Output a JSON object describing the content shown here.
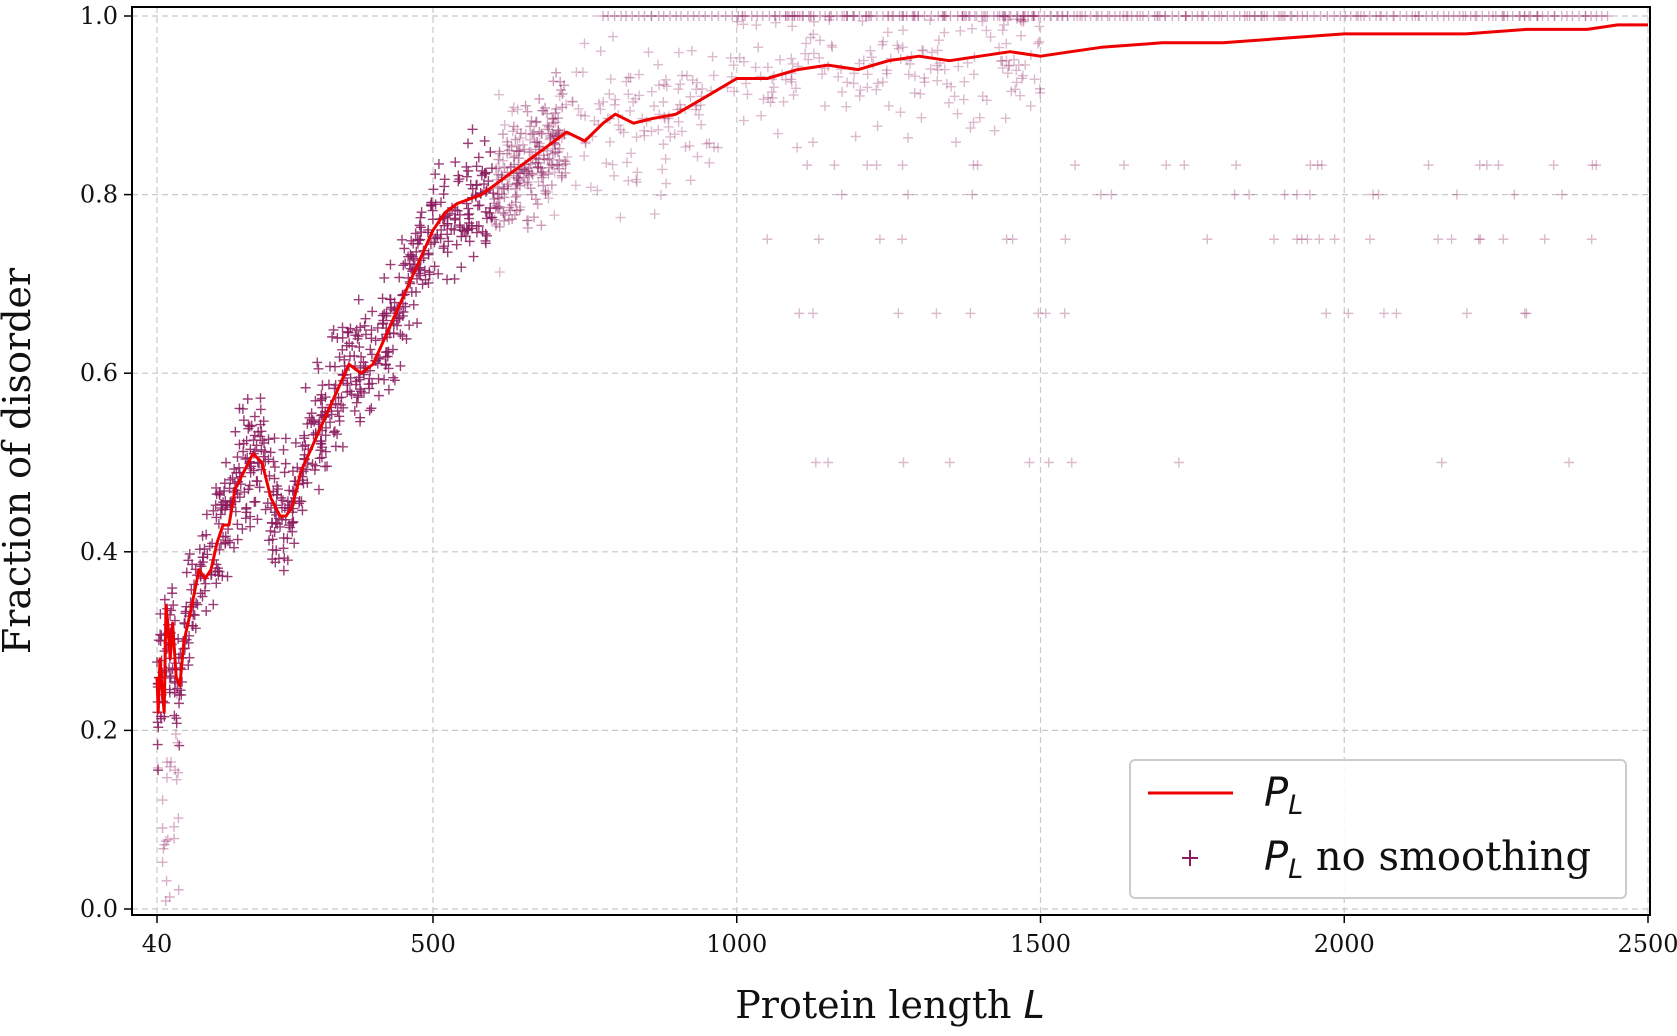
{
  "chart_data": {
    "type": "scatter",
    "xlabel": "Protein length",
    "xlabel_var": "L",
    "ylabel": "Fraction of disorder",
    "xlim": [
      0,
      2500
    ],
    "ylim": [
      0.0,
      1.0
    ],
    "x_ticks": [
      40,
      500,
      1000,
      1500,
      2000,
      2500
    ],
    "x_tick_labels": [
      "40",
      "500",
      "1000",
      "1500",
      "2000",
      "2500"
    ],
    "y_ticks": [
      0.0,
      0.2,
      0.4,
      0.6,
      0.8,
      1.0
    ],
    "y_tick_labels": [
      "0.0",
      "0.2",
      "0.4",
      "0.6",
      "0.8",
      "1.0"
    ],
    "grid": true,
    "legend_position": "lower-right",
    "colors": {
      "line": "#ee0000",
      "scatter": "#8b1a5e",
      "grid": "#c8c8c8"
    },
    "series": [
      {
        "name": "P",
        "name_sub": "L",
        "kind": "line",
        "x": [
          40,
          42,
          45,
          48,
          52,
          55,
          58,
          62,
          66,
          72,
          78,
          85,
          95,
          110,
          120,
          130,
          140,
          150,
          160,
          170,
          185,
          200,
          215,
          230,
          245,
          255,
          265,
          280,
          300,
          320,
          340,
          360,
          380,
          400,
          420,
          440,
          460,
          480,
          500,
          520,
          540,
          560,
          580,
          600,
          620,
          640,
          660,
          680,
          700,
          720,
          750,
          780,
          800,
          830,
          860,
          900,
          950,
          1000,
          1050,
          1100,
          1150,
          1200,
          1250,
          1300,
          1350,
          1400,
          1450,
          1500,
          1550,
          1600,
          1700,
          1800,
          1900,
          2000,
          2100,
          2200,
          2300,
          2400,
          2450,
          2500
        ],
        "y": [
          0.26,
          0.22,
          0.28,
          0.25,
          0.22,
          0.34,
          0.32,
          0.28,
          0.32,
          0.26,
          0.25,
          0.3,
          0.33,
          0.38,
          0.37,
          0.38,
          0.41,
          0.43,
          0.43,
          0.47,
          0.49,
          0.51,
          0.5,
          0.46,
          0.44,
          0.44,
          0.45,
          0.49,
          0.52,
          0.55,
          0.58,
          0.61,
          0.6,
          0.61,
          0.64,
          0.67,
          0.7,
          0.73,
          0.76,
          0.78,
          0.79,
          0.795,
          0.8,
          0.81,
          0.82,
          0.83,
          0.84,
          0.85,
          0.86,
          0.87,
          0.86,
          0.88,
          0.89,
          0.88,
          0.885,
          0.89,
          0.91,
          0.93,
          0.93,
          0.94,
          0.945,
          0.94,
          0.95,
          0.955,
          0.95,
          0.955,
          0.96,
          0.955,
          0.96,
          0.965,
          0.97,
          0.97,
          0.975,
          0.98,
          0.98,
          0.98,
          0.985,
          0.985,
          0.99,
          0.99
        ]
      },
      {
        "name": "P",
        "name_sub": "L",
        "name_suffix": " no smoothing",
        "kind": "scatter",
        "marker": "+",
        "note": "dense scatter; approx. 1,400 points along the same trend with spread ±0.12 (darker for L < 700, lighter beyond)"
      }
    ]
  }
}
